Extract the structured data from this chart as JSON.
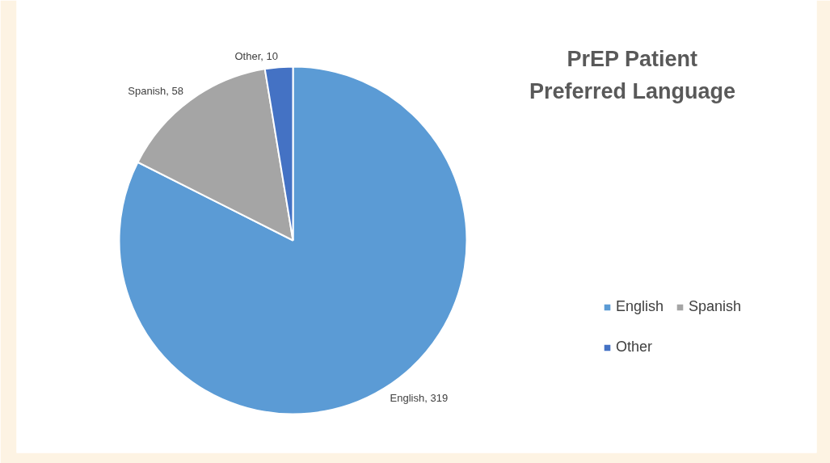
{
  "chart_data": {
    "type": "pie",
    "title": "PrEP Patient\nPreferred Language",
    "categories": [
      "English",
      "Spanish",
      "Other"
    ],
    "values": [
      319,
      58,
      10
    ],
    "colors": [
      "#5b9bd5",
      "#a5a5a5",
      "#4472c4"
    ],
    "value_labels": [
      "English, 319",
      "Spanish, 58",
      "Other, 10"
    ],
    "legend": "right"
  }
}
